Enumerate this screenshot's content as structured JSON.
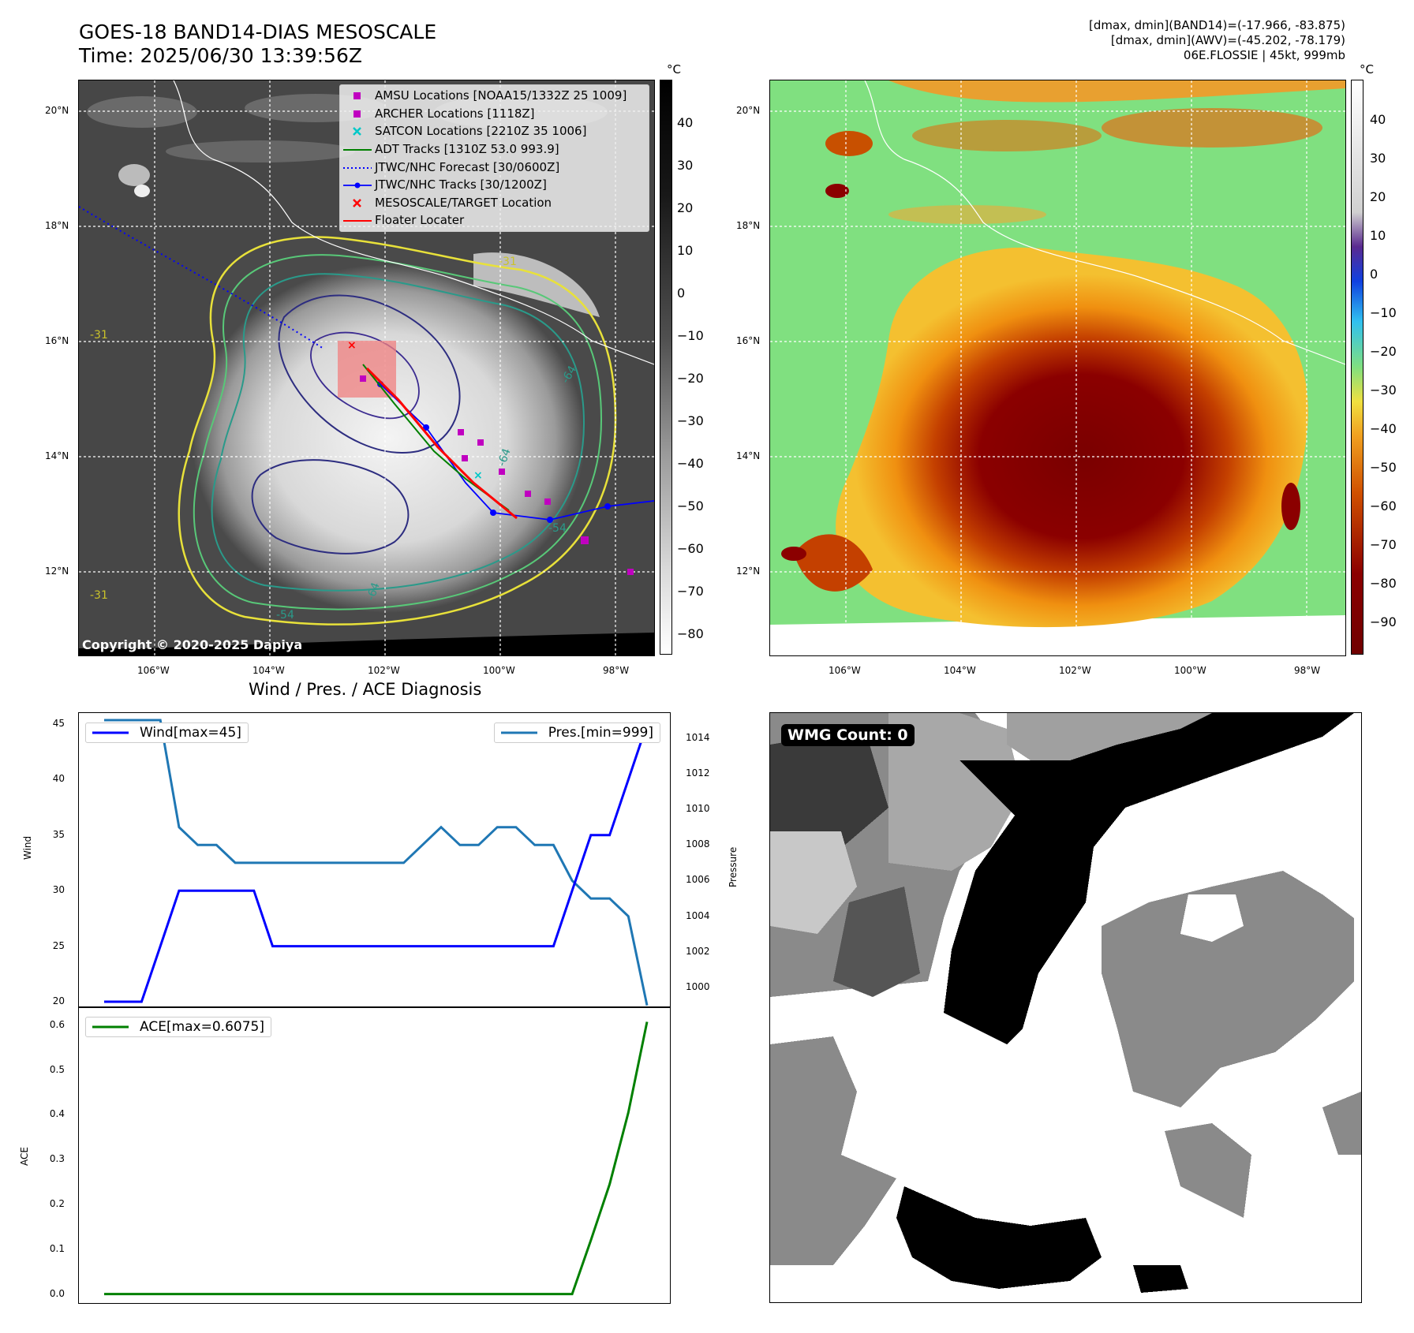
{
  "header": {
    "title_line1": "GOES-18 BAND14-DIAS MESOSCALE",
    "title_line2": "Time: 2025/06/30 13:39:56Z",
    "info_line1": "[dmax, dmin](BAND14)=(-17.966, -83.875)",
    "info_line2": "[dmax, dmin](AWV)=(-45.202, -78.179)",
    "info_line3": "06E.FLOSSIE | 45kt, 999mb"
  },
  "map": {
    "lat_ticks": [
      "20°N",
      "18°N",
      "16°N",
      "14°N",
      "12°N"
    ],
    "lon_ticks": [
      "106°W",
      "104°W",
      "102°W",
      "100°W",
      "98°W"
    ],
    "copyright": "Copyright © 2020-2025 Dapiya",
    "contour_labels": [
      "-31",
      "-31",
      "-64",
      "-54",
      "-64",
      "-54",
      "-31",
      "-64"
    ],
    "legend": [
      {
        "label": "AMSU Locations [NOAA15/1332Z 25 1009]",
        "symbol": "square",
        "color": "#c000c0"
      },
      {
        "label": "ARCHER Locations [1118Z]",
        "symbol": "square",
        "color": "#c000c0"
      },
      {
        "label": "SATCON Locations [2210Z 35 1006]",
        "symbol": "x",
        "color": "#00c8c8"
      },
      {
        "label": "ADT Tracks [1310Z 53.0 993.9]",
        "symbol": "line",
        "color": "#008000"
      },
      {
        "label": "JTWC/NHC Forecast [30/0600Z]",
        "symbol": "dotted",
        "color": "#0000ff"
      },
      {
        "label": "JTWC/NHC Tracks [30/1200Z]",
        "symbol": "line-dot",
        "color": "#0000ff"
      },
      {
        "label": "MESOSCALE/TARGET Location",
        "symbol": "x",
        "color": "#ff0000"
      },
      {
        "label": "Floater Locater",
        "symbol": "line",
        "color": "#ff0000"
      }
    ]
  },
  "colorbar_left": {
    "unit": "°C",
    "ticks": [
      "40",
      "30",
      "20",
      "10",
      "0",
      "−10",
      "−20",
      "−30",
      "−40",
      "−50",
      "−60",
      "−70",
      "−80"
    ]
  },
  "colorbar_right": {
    "unit": "°C",
    "ticks": [
      "40",
      "30",
      "20",
      "10",
      "0",
      "−10",
      "−20",
      "−30",
      "−40",
      "−50",
      "−60",
      "−70",
      "−80",
      "−90"
    ]
  },
  "wmg": {
    "label": "WMG Count: 0"
  },
  "chart_data": [
    {
      "type": "line",
      "title": "Wind / Pres. / ACE Diagnosis",
      "ylabel": "Wind",
      "ylabel_right": "Pressure",
      "ylim": [
        19.5,
        46
      ],
      "ylim_right": [
        998.9,
        1015.4
      ],
      "y_ticks": [
        "45",
        "40",
        "35",
        "30",
        "25",
        "20"
      ],
      "y_ticks_right": [
        "1014",
        "1012",
        "1010",
        "1008",
        "1006",
        "1004",
        "1002",
        "1000"
      ],
      "x": [
        0,
        1,
        2,
        3,
        4,
        5,
        6,
        7,
        8,
        9,
        10,
        11,
        12,
        13,
        14,
        15,
        16,
        17,
        18,
        19,
        20,
        21,
        22,
        23,
        24,
        25,
        26,
        27,
        28,
        29
      ],
      "series": [
        {
          "name": "Wind[max=45]",
          "color": "#0000ff",
          "axis": "left",
          "values": [
            20,
            20,
            20,
            25,
            30,
            30,
            30,
            30,
            30,
            25,
            25,
            25,
            25,
            25,
            25,
            25,
            25,
            25,
            25,
            25,
            25,
            25,
            25,
            25,
            25,
            30,
            35,
            35,
            40,
            45
          ]
        },
        {
          "name": "Pres.[min=999]",
          "color": "#1f77b4",
          "axis": "right",
          "values": [
            1015,
            1015,
            1015,
            1015,
            1009,
            1008,
            1008,
            1007,
            1007,
            1007,
            1007,
            1007,
            1007,
            1007,
            1007,
            1007,
            1007,
            1008,
            1009,
            1008,
            1008,
            1009,
            1009,
            1008,
            1008,
            1006,
            1005,
            1005,
            1004,
            999
          ]
        }
      ]
    },
    {
      "type": "line",
      "ylabel": "ACE",
      "ylim": [
        -0.02,
        0.64
      ],
      "y_ticks": [
        "0.6",
        "0.5",
        "0.4",
        "0.3",
        "0.2",
        "0.1",
        "0.0"
      ],
      "x": [
        0,
        1,
        2,
        3,
        4,
        5,
        6,
        7,
        8,
        9,
        10,
        11,
        12,
        13,
        14,
        15,
        16,
        17,
        18,
        19,
        20,
        21,
        22,
        23,
        24,
        25,
        26,
        27,
        28,
        29
      ],
      "series": [
        {
          "name": "ACE[max=0.6075]",
          "color": "#008000",
          "values": [
            0,
            0,
            0,
            0,
            0,
            0,
            0,
            0,
            0,
            0,
            0,
            0,
            0,
            0,
            0,
            0,
            0,
            0,
            0,
            0,
            0,
            0,
            0,
            0,
            0,
            0,
            0.12,
            0.245,
            0.405,
            0.6075
          ]
        }
      ]
    }
  ]
}
